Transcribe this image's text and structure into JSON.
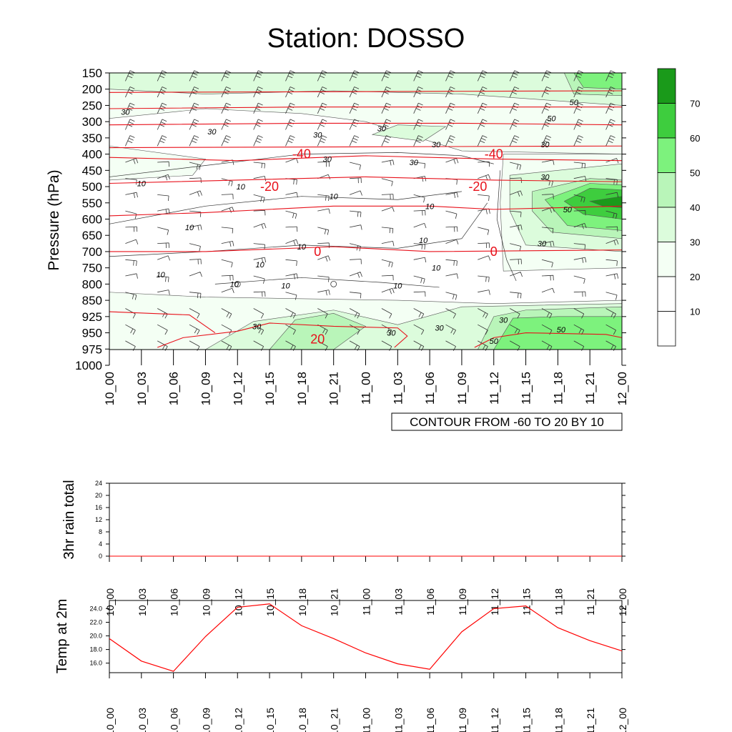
{
  "title": "Station: DOSSO",
  "time_labels": [
    "10_00",
    "10_03",
    "10_06",
    "10_09",
    "10_12",
    "10_15",
    "10_18",
    "10_21",
    "11_00",
    "11_03",
    "11_06",
    "11_09",
    "11_12",
    "11_15",
    "11_18",
    "11_21",
    "12_00"
  ],
  "colors": {
    "temp_line": "#ff0000",
    "contour_red": "#e8101a",
    "shades": [
      "#ffffff",
      "#f4fff4",
      "#dcfcdc",
      "#b9f5b9",
      "#7df27d",
      "#3ecd3e",
      "#1a9a1a"
    ]
  },
  "chart_data": [
    {
      "id": "cross-section",
      "type": "heatmap",
      "title": "Station: DOSSO",
      "ylabel": "Pressure (hPa)",
      "y_ticks": [
        150,
        200,
        250,
        300,
        350,
        400,
        450,
        500,
        550,
        600,
        650,
        700,
        750,
        800,
        850,
        925,
        950,
        975,
        1000
      ],
      "x_ticks": [
        "10_00",
        "10_03",
        "10_06",
        "10_09",
        "10_12",
        "10_15",
        "10_18",
        "10_21",
        "11_00",
        "11_03",
        "11_06",
        "11_09",
        "11_12",
        "11_15",
        "11_18",
        "11_21",
        "12_00"
      ],
      "annotation": "CONTOUR FROM -60 TO 20 BY 10",
      "colorbar": {
        "levels": [
          10,
          20,
          30,
          40,
          50,
          60,
          70
        ]
      },
      "temperature_contour_labels": [
        {
          "value": "-40",
          "time": 6,
          "level": 13
        },
        {
          "value": "-40",
          "time": 12,
          "level": 13
        },
        {
          "value": "-20",
          "time": 5,
          "level": 11
        },
        {
          "value": "-20",
          "time": 11.5,
          "level": 11
        },
        {
          "value": "0",
          "time": 6.5,
          "level": 7
        },
        {
          "value": "0",
          "time": 12,
          "level": 7
        },
        {
          "value": "20",
          "time": 6.5,
          "level": 1.6
        }
      ],
      "speed_contour_labels": [
        {
          "value": "30",
          "time": 0.5,
          "level": 15.6
        },
        {
          "value": "30",
          "time": 3.2,
          "level": 14.4
        },
        {
          "value": "30",
          "time": 6.5,
          "level": 14.2
        },
        {
          "value": "30",
          "time": 8.5,
          "level": 14.6
        },
        {
          "value": "30",
          "time": 10.2,
          "level": 13.6
        },
        {
          "value": "30",
          "time": 6.8,
          "level": 12.7
        },
        {
          "value": "30",
          "time": 9.5,
          "level": 12.5
        },
        {
          "value": "30",
          "time": 13.6,
          "level": 13.6
        },
        {
          "value": "30",
          "time": 13.6,
          "level": 11.6
        },
        {
          "value": "30",
          "time": 13.5,
          "level": 7.5
        },
        {
          "value": "30",
          "time": 4.6,
          "level": 2.4
        },
        {
          "value": "30",
          "time": 8.8,
          "level": 2.0
        },
        {
          "value": "30",
          "time": 10.3,
          "level": 2.3
        },
        {
          "value": "30",
          "time": 12.3,
          "level": 2.8
        },
        {
          "value": "50",
          "time": 14.5,
          "level": 16.2
        },
        {
          "value": "50",
          "time": 13.8,
          "level": 15.2
        },
        {
          "value": "50",
          "time": 14.3,
          "level": 9.6
        },
        {
          "value": "50",
          "time": 14.1,
          "level": 2.2
        },
        {
          "value": "50",
          "time": 12.0,
          "level": 1.5
        },
        {
          "value": "10",
          "time": 1.0,
          "level": 11.2
        },
        {
          "value": "10",
          "time": 4.1,
          "level": 11.0
        },
        {
          "value": "10",
          "time": 7.0,
          "level": 10.4
        },
        {
          "value": "10",
          "time": 10.0,
          "level": 9.8
        },
        {
          "value": "10",
          "time": 2.5,
          "level": 8.5
        },
        {
          "value": "10",
          "time": 6.0,
          "level": 7.3
        },
        {
          "value": "10",
          "time": 9.8,
          "level": 7.7
        },
        {
          "value": "10",
          "time": 4.7,
          "level": 6.2
        },
        {
          "value": "10",
          "time": 10.2,
          "level": 6.0
        },
        {
          "value": "10",
          "time": 1.6,
          "level": 5.6
        },
        {
          "value": "10",
          "time": 3.9,
          "level": 5.0
        },
        {
          "value": "10",
          "time": 5.5,
          "level": 4.9
        },
        {
          "value": "10",
          "time": 9.0,
          "level": 4.9
        }
      ]
    },
    {
      "id": "rain",
      "type": "line",
      "ylabel": "3hr rain total",
      "y_ticks": [
        0,
        4,
        8,
        12,
        16,
        20,
        24
      ],
      "ylim": [
        0,
        24
      ],
      "x": [
        "10_00",
        "10_03",
        "10_06",
        "10_09",
        "10_12",
        "10_15",
        "10_18",
        "10_21",
        "11_00",
        "11_03",
        "11_06",
        "11_09",
        "11_12",
        "11_15",
        "11_18",
        "11_21",
        "12_00"
      ],
      "values": [
        0,
        0,
        0,
        0,
        0,
        0,
        0,
        0,
        0,
        0,
        0,
        0,
        0,
        0,
        0,
        0,
        0
      ]
    },
    {
      "id": "temp",
      "type": "line",
      "ylabel": "Temp at 2m",
      "y_ticks": [
        "16.0",
        "18.0",
        "20.0",
        "22.0",
        "24.0"
      ],
      "ylim": [
        14.6,
        25.2
      ],
      "x": [
        "10_00",
        "10_03",
        "10_06",
        "10_09",
        "10_12",
        "10_15",
        "10_18",
        "10_21",
        "11_00",
        "11_03",
        "11_06",
        "11_09",
        "11_12",
        "11_15",
        "11_18",
        "11_21",
        "12_00"
      ],
      "values": [
        19.6,
        16.3,
        14.8,
        19.9,
        24.2,
        24.7,
        21.5,
        19.6,
        17.5,
        15.9,
        15.1,
        20.6,
        24.0,
        24.4,
        21.2,
        19.3,
        17.8
      ]
    }
  ]
}
